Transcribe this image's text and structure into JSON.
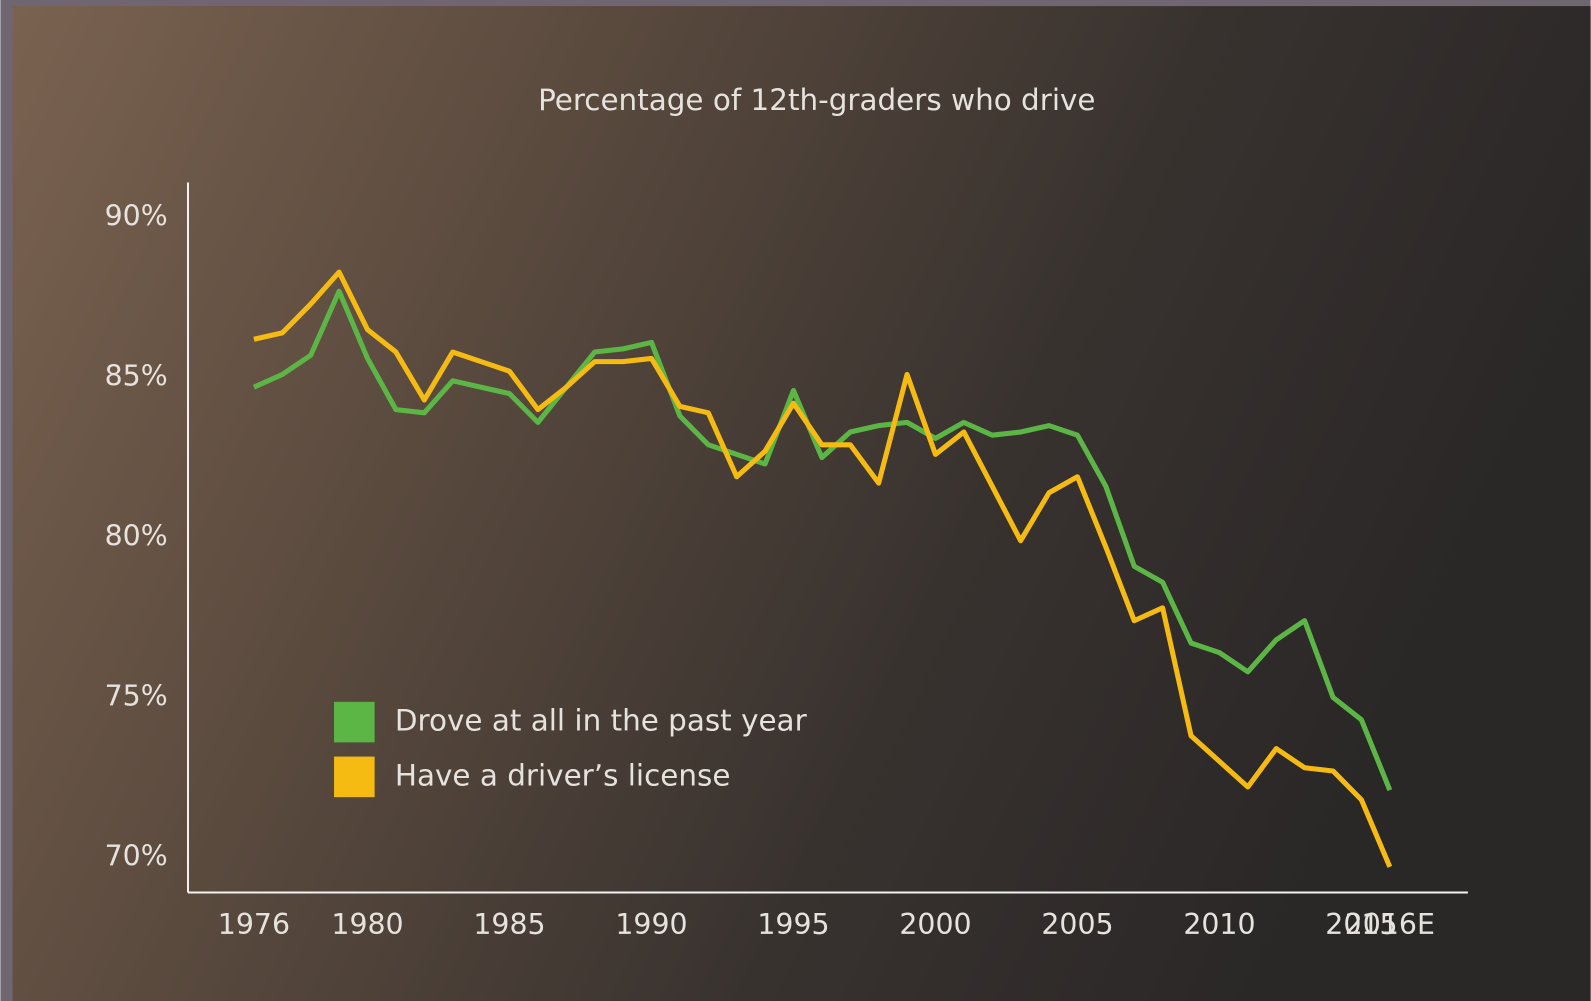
{
  "chart_data": {
    "type": "line",
    "title": "Percentage of 12th-graders who drive",
    "categories": [
      "1976",
      null,
      null,
      null,
      "1980",
      null,
      null,
      null,
      null,
      "1985",
      null,
      null,
      null,
      null,
      "1990",
      null,
      null,
      null,
      null,
      "1995",
      null,
      null,
      null,
      null,
      "2000",
      null,
      null,
      null,
      null,
      "2005",
      null,
      null,
      null,
      null,
      "2010",
      null,
      null,
      null,
      null,
      "2015",
      "2016E"
    ],
    "series": [
      {
        "name": "Drove at all in the past year",
        "color": "#5cb646",
        "values": [
          84.7,
          85.1,
          85.7,
          87.7,
          85.6,
          84.0,
          83.9,
          84.9,
          84.7,
          84.5,
          83.6,
          84.7,
          85.8,
          85.9,
          86.1,
          83.8,
          82.9,
          82.6,
          82.3,
          84.6,
          82.5,
          83.3,
          83.5,
          83.6,
          83.1,
          83.6,
          83.2,
          83.3,
          83.5,
          83.2,
          81.6,
          79.1,
          78.6,
          76.7,
          76.4,
          75.8,
          76.8,
          77.4,
          75.0,
          74.3,
          72.1
        ]
      },
      {
        "name": "Have a driver’s license",
        "color": "#f5bb12",
        "values": [
          86.2,
          86.4,
          87.3,
          88.3,
          86.5,
          85.8,
          84.3,
          85.8,
          85.5,
          85.2,
          84.0,
          84.7,
          85.5,
          85.5,
          85.6,
          84.1,
          83.9,
          81.9,
          82.7,
          84.2,
          82.9,
          82.9,
          81.7,
          85.1,
          82.6,
          83.3,
          81.6,
          79.9,
          81.4,
          81.9,
          79.7,
          77.4,
          77.8,
          73.8,
          73.0,
          72.2,
          73.4,
          72.8,
          72.7,
          71.8,
          69.7
        ]
      }
    ],
    "ylim": [
      68.9,
      91.1
    ],
    "yticks": [
      {
        "value": 70,
        "label": "70%"
      },
      {
        "value": 75,
        "label": "75%"
      },
      {
        "value": 80,
        "label": "80%"
      },
      {
        "value": 85,
        "label": "85%"
      },
      {
        "value": 90,
        "label": "90%"
      }
    ],
    "grid": false
  }
}
